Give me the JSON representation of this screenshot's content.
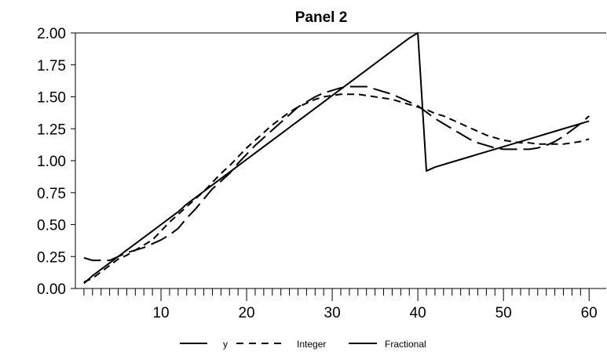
{
  "chart_data": {
    "type": "line",
    "title": "Panel 2",
    "xlabel": "",
    "ylabel": "",
    "xlim": [
      0,
      62
    ],
    "ylim": [
      0,
      2
    ],
    "x_ticks": [
      10,
      20,
      30,
      40,
      50,
      60
    ],
    "y_ticks": [
      "0.00",
      "0.25",
      "0.50",
      "0.75",
      "1.00",
      "1.25",
      "1.50",
      "1.75",
      "2.00"
    ],
    "legend_position": "bottom",
    "grid": false,
    "x": [
      1,
      2,
      3,
      4,
      5,
      6,
      7,
      8,
      9,
      10,
      11,
      12,
      13,
      14,
      15,
      16,
      17,
      18,
      19,
      20,
      21,
      22,
      23,
      24,
      25,
      26,
      27,
      28,
      29,
      30,
      31,
      32,
      33,
      34,
      35,
      36,
      37,
      38,
      39,
      40,
      41,
      42,
      43,
      44,
      45,
      46,
      47,
      48,
      49,
      50,
      51,
      52,
      53,
      54,
      55,
      56,
      57,
      58,
      59,
      60
    ],
    "series": [
      {
        "name": "y",
        "dash": "solid",
        "values": [
          0.04,
          0.1,
          0.15,
          0.2,
          0.25,
          0.3,
          0.35,
          0.4,
          0.45,
          0.5,
          0.55,
          0.6,
          0.66,
          0.71,
          0.76,
          0.81,
          0.86,
          0.91,
          0.96,
          1.01,
          1.06,
          1.11,
          1.16,
          1.21,
          1.26,
          1.31,
          1.36,
          1.41,
          1.46,
          1.51,
          1.56,
          1.61,
          1.66,
          1.71,
          1.76,
          1.81,
          1.86,
          1.91,
          1.96,
          2.0,
          0.92,
          0.95,
          0.97,
          0.99,
          1.01,
          1.03,
          1.05,
          1.07,
          1.09,
          1.11,
          1.13,
          1.15,
          1.17,
          1.19,
          1.21,
          1.23,
          1.25,
          1.27,
          1.29,
          1.31
        ]
      },
      {
        "name": "Integer",
        "dash": "short",
        "values": [
          0.05,
          0.08,
          0.13,
          0.18,
          0.23,
          0.26,
          0.3,
          0.34,
          0.38,
          0.45,
          0.52,
          0.58,
          0.64,
          0.7,
          0.76,
          0.83,
          0.9,
          0.96,
          1.03,
          1.1,
          1.16,
          1.22,
          1.28,
          1.33,
          1.38,
          1.42,
          1.45,
          1.48,
          1.5,
          1.51,
          1.52,
          1.52,
          1.52,
          1.51,
          1.5,
          1.49,
          1.48,
          1.46,
          1.44,
          1.42,
          1.4,
          1.37,
          1.35,
          1.32,
          1.29,
          1.26,
          1.23,
          1.2,
          1.18,
          1.16,
          1.15,
          1.14,
          1.14,
          1.13,
          1.13,
          1.13,
          1.13,
          1.14,
          1.15,
          1.17
        ]
      },
      {
        "name": "Fractional",
        "dash": "long",
        "values": [
          0.24,
          0.22,
          0.22,
          0.22,
          0.25,
          0.28,
          0.3,
          0.32,
          0.35,
          0.38,
          0.42,
          0.47,
          0.55,
          0.62,
          0.7,
          0.78,
          0.84,
          0.9,
          0.98,
          1.05,
          1.12,
          1.18,
          1.24,
          1.3,
          1.36,
          1.42,
          1.46,
          1.5,
          1.53,
          1.55,
          1.57,
          1.58,
          1.58,
          1.58,
          1.56,
          1.54,
          1.52,
          1.49,
          1.46,
          1.43,
          1.38,
          1.33,
          1.29,
          1.25,
          1.21,
          1.17,
          1.14,
          1.12,
          1.1,
          1.09,
          1.09,
          1.09,
          1.09,
          1.1,
          1.12,
          1.15,
          1.19,
          1.24,
          1.29,
          1.35
        ]
      }
    ]
  }
}
